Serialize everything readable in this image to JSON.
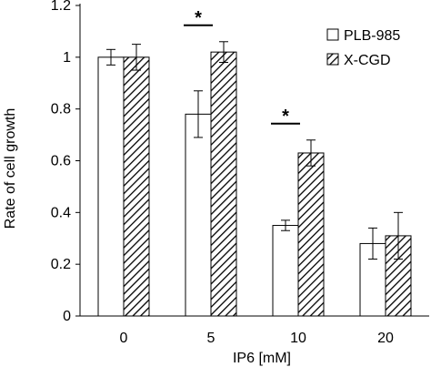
{
  "chart_data": {
    "type": "bar",
    "title": "",
    "xlabel": "IP6 [mM]",
    "ylabel": "Rate of cell growth",
    "ylim": [
      0,
      1.2
    ],
    "yticks": [
      "0",
      "0.2",
      "0.4",
      "0.6",
      "0.8",
      "1",
      "1.2"
    ],
    "categories": [
      "0",
      "5",
      "10",
      "20"
    ],
    "series": [
      {
        "name": "PLB-985",
        "fill": "solid-white",
        "values": [
          1.0,
          0.78,
          0.35,
          0.28
        ],
        "errors": [
          0.03,
          0.09,
          0.02,
          0.06
        ]
      },
      {
        "name": "X-CGD",
        "fill": "diagonal-hatch",
        "values": [
          1.0,
          1.02,
          0.63,
          0.31
        ],
        "errors": [
          0.05,
          0.04,
          0.05,
          0.09
        ]
      }
    ],
    "grid": false,
    "legend": "top-right",
    "annotations": [
      {
        "label": "*",
        "category": "5"
      },
      {
        "label": "*",
        "category": "10"
      }
    ],
    "colors": {
      "bar_stroke": "#000000",
      "bar_fill": "#ffffff",
      "hatch": "#000000"
    }
  }
}
